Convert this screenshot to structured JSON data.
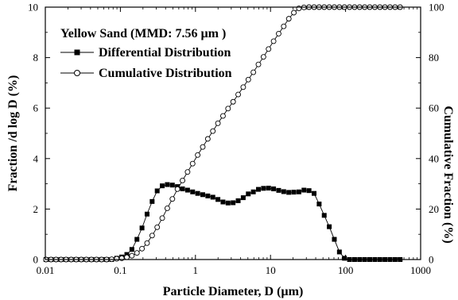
{
  "chart_data": {
    "type": "scatter",
    "title": "Yellow Sand (MMD: 7.56 µm )",
    "xlabel": "Particle Diameter, D (µm)",
    "ylabel": "Fraction /d log D (%)",
    "y2label": "Cumulative Fraction (%)",
    "xscale": "log",
    "xlim": [
      0.01,
      1000
    ],
    "ylim": [
      0,
      10
    ],
    "y2lim": [
      0,
      100
    ],
    "x_ticks": [
      "0.01",
      "0.1",
      "1",
      "10",
      "100",
      "1000"
    ],
    "y_ticks": [
      "0",
      "2",
      "4",
      "6",
      "8",
      "10"
    ],
    "y2_ticks": [
      "0",
      "20",
      "40",
      "60",
      "80",
      "100"
    ],
    "legend_position": "top-left",
    "x": [
      0.0102,
      0.0119,
      0.0139,
      0.0162,
      0.0189,
      0.0221,
      0.0258,
      0.0301,
      0.0352,
      0.0411,
      0.048,
      0.0561,
      0.0655,
      0.0765,
      0.0893,
      0.1043,
      0.1219,
      0.1423,
      0.1662,
      0.1941,
      0.2268,
      0.2649,
      0.3094,
      0.3613,
      0.422,
      0.4929,
      0.5757,
      0.6724,
      0.7853,
      0.9172,
      1.0713,
      1.2512,
      1.4614,
      1.7068,
      1.9935,
      2.3283,
      2.7193,
      3.1761,
      3.7095,
      4.3325,
      5.0602,
      5.9101,
      6.9027,
      8.062,
      9.416,
      10.9975,
      12.8445,
      15.0018,
      17.5214,
      20.4642,
      23.9012,
      27.9155,
      32.604,
      38.08,
      44.4756,
      51.9455,
      60.67,
      70.8594,
      82.7601,
      96.6603,
      112.8947,
      131.8556,
      154.0,
      179.864,
      210.077,
      245.362,
      286.573,
      334.707,
      390.934,
      456.571,
      533.252
    ],
    "series": [
      {
        "name": "Differential Distribution",
        "marker": "filled-square",
        "axis": "left",
        "values": [
          0,
          0,
          0,
          0,
          0,
          0,
          0,
          0,
          0,
          0,
          0,
          0,
          0,
          0,
          0.05,
          0.1,
          0.2,
          0.4,
          0.8,
          1.25,
          1.8,
          2.3,
          2.72,
          2.92,
          2.97,
          2.95,
          2.89,
          2.8,
          2.75,
          2.68,
          2.62,
          2.57,
          2.52,
          2.47,
          2.38,
          2.28,
          2.24,
          2.25,
          2.33,
          2.45,
          2.6,
          2.68,
          2.78,
          2.82,
          2.83,
          2.8,
          2.74,
          2.69,
          2.66,
          2.67,
          2.68,
          2.75,
          2.73,
          2.62,
          2.2,
          1.75,
          1.3,
          0.8,
          0.3,
          0.05,
          0,
          0,
          0,
          0,
          0,
          0,
          0,
          0,
          0,
          0,
          0
        ]
      },
      {
        "name": "Cumulative Distribution",
        "marker": "open-circle",
        "axis": "right",
        "values": [
          0,
          0,
          0,
          0,
          0,
          0,
          0,
          0,
          0,
          0,
          0,
          0,
          0,
          0.1,
          0.3,
          0.5,
          0.9,
          1.5,
          2.6,
          4.3,
          6.5,
          9.5,
          12.8,
          16.4,
          20.3,
          24.0,
          27.9,
          31.3,
          34.7,
          38.0,
          41.4,
          44.6,
          47.8,
          50.9,
          54.0,
          56.9,
          59.8,
          62.5,
          65.4,
          68.3,
          71.3,
          74.2,
          77.3,
          80.3,
          83.4,
          86.5,
          89.5,
          92.4,
          95.4,
          97.8,
          99.5,
          99.9,
          100,
          100,
          100,
          100,
          100,
          100,
          100,
          100,
          100,
          100,
          100,
          100,
          100,
          100,
          100,
          100,
          100,
          100,
          100
        ]
      }
    ]
  }
}
